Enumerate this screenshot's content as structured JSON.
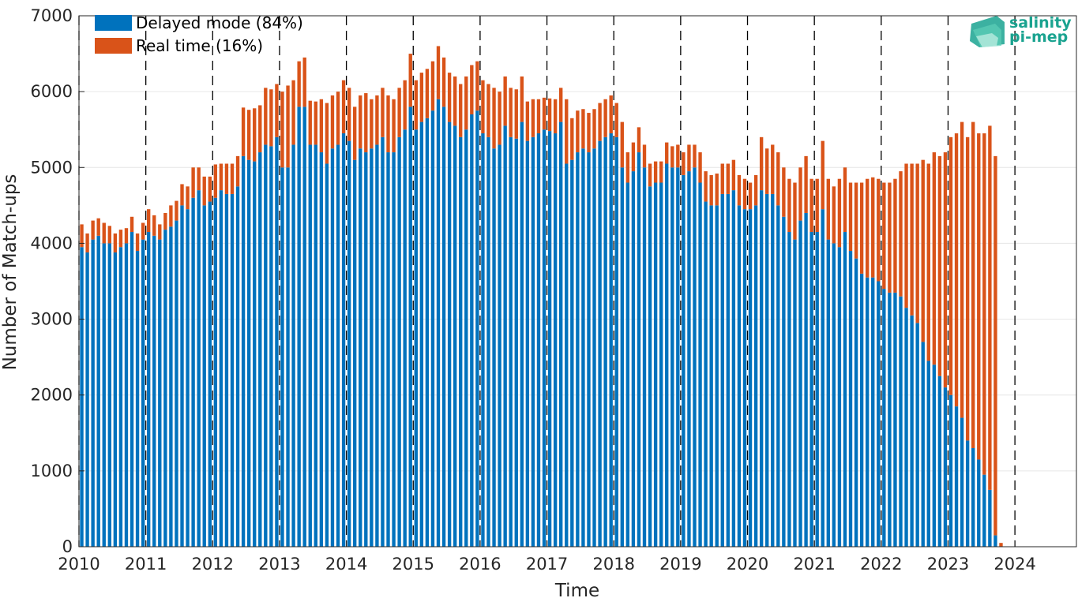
{
  "chart_data": {
    "type": "bar",
    "stacked": true,
    "xlabel": "Time",
    "ylabel": "Number of Match-ups",
    "xlim": [
      2010,
      2024.92
    ],
    "ylim": [
      0,
      7000
    ],
    "yticks": [
      0,
      1000,
      2000,
      3000,
      4000,
      5000,
      6000,
      7000
    ],
    "xticks": [
      2010,
      2011,
      2012,
      2013,
      2014,
      2015,
      2016,
      2017,
      2018,
      2019,
      2020,
      2021,
      2022,
      2023,
      2024
    ],
    "grid": "horizontal",
    "vertical_year_lines": "dashed",
    "legend_position": "top-left",
    "series": [
      {
        "name": "Delayed mode (84%)",
        "color": "#0072BD"
      },
      {
        "name": "Real time (16%)",
        "color": "#D95319"
      }
    ],
    "x_start": "2010-01",
    "bar_interval": "monthly",
    "delayed": [
      3950,
      3880,
      4050,
      4100,
      4000,
      4000,
      3880,
      3950,
      4000,
      4150,
      3900,
      4050,
      4150,
      4100,
      4050,
      4180,
      4220,
      4300,
      4500,
      4450,
      4600,
      4700,
      4500,
      4550,
      4600,
      4700,
      4650,
      4650,
      4750,
      5150,
      5100,
      5080,
      5200,
      5300,
      5280,
      5400,
      5000,
      5000,
      5300,
      5800,
      5800,
      5300,
      5300,
      5200,
      5050,
      5250,
      5300,
      5450,
      5350,
      5100,
      5250,
      5200,
      5250,
      5300,
      5400,
      5200,
      5200,
      5400,
      5500,
      5800,
      5500,
      5600,
      5650,
      5750,
      5900,
      5800,
      5600,
      5550,
      5400,
      5500,
      5700,
      5750,
      5450,
      5400,
      5250,
      5300,
      5550,
      5400,
      5380,
      5600,
      5350,
      5400,
      5450,
      5500,
      5480,
      5450,
      5600,
      5050,
      5100,
      5200,
      5250,
      5200,
      5250,
      5350,
      5400,
      5450,
      5400,
      5000,
      4800,
      4950,
      5200,
      5000,
      4750,
      4800,
      4800,
      5050,
      5000,
      5000,
      4900,
      4950,
      5000,
      4800,
      4550,
      4500,
      4500,
      4650,
      4650,
      4700,
      4500,
      4450,
      4450,
      4500,
      4700,
      4650,
      4650,
      4500,
      4350,
      4150,
      4050,
      4300,
      4400,
      4150,
      4150,
      4450,
      4050,
      4000,
      3950,
      4150,
      3900,
      3800,
      3600,
      3550,
      3550,
      3500,
      3400,
      3350,
      3350,
      3300,
      3150,
      3050,
      2950,
      2700,
      2450,
      2400,
      2250,
      2100,
      2000,
      1850,
      1700,
      1400,
      1300,
      1150,
      950,
      750,
      150,
      0
    ],
    "realtime": [
      300,
      250,
      250,
      230,
      270,
      230,
      250,
      230,
      200,
      200,
      230,
      220,
      300,
      270,
      200,
      220,
      280,
      260,
      280,
      300,
      400,
      300,
      380,
      330,
      440,
      350,
      400,
      400,
      400,
      640,
      660,
      700,
      620,
      750,
      750,
      700,
      1000,
      1080,
      850,
      600,
      650,
      580,
      570,
      700,
      800,
      700,
      700,
      700,
      700,
      700,
      700,
      780,
      650,
      650,
      650,
      750,
      700,
      650,
      650,
      700,
      650,
      650,
      650,
      650,
      700,
      650,
      650,
      650,
      700,
      700,
      650,
      650,
      700,
      700,
      800,
      700,
      650,
      650,
      650,
      600,
      520,
      500,
      450,
      420,
      430,
      450,
      450,
      850,
      550,
      550,
      520,
      520,
      520,
      500,
      500,
      500,
      450,
      600,
      400,
      380,
      330,
      300,
      300,
      280,
      280,
      280,
      280,
      300,
      300,
      350,
      300,
      400,
      400,
      400,
      420,
      400,
      400,
      400,
      400,
      400,
      350,
      400,
      700,
      600,
      650,
      700,
      650,
      700,
      750,
      700,
      750,
      700,
      700,
      900,
      800,
      750,
      900,
      850,
      900,
      1000,
      1200,
      1300,
      1320,
      1350,
      1400,
      1450,
      1500,
      1650,
      1900,
      2000,
      2100,
      2400,
      2600,
      2800,
      2900,
      3100,
      3400,
      3600,
      3900,
      4000,
      4300,
      4300,
      4500,
      4800,
      5000,
      50
    ]
  },
  "legend": {
    "delayed_label": "Delayed mode (84%)",
    "realtime_label": "Real time (16%)"
  },
  "logo": {
    "line1": "salinity",
    "line2": "pi-mep",
    "color": "#1aa390"
  }
}
